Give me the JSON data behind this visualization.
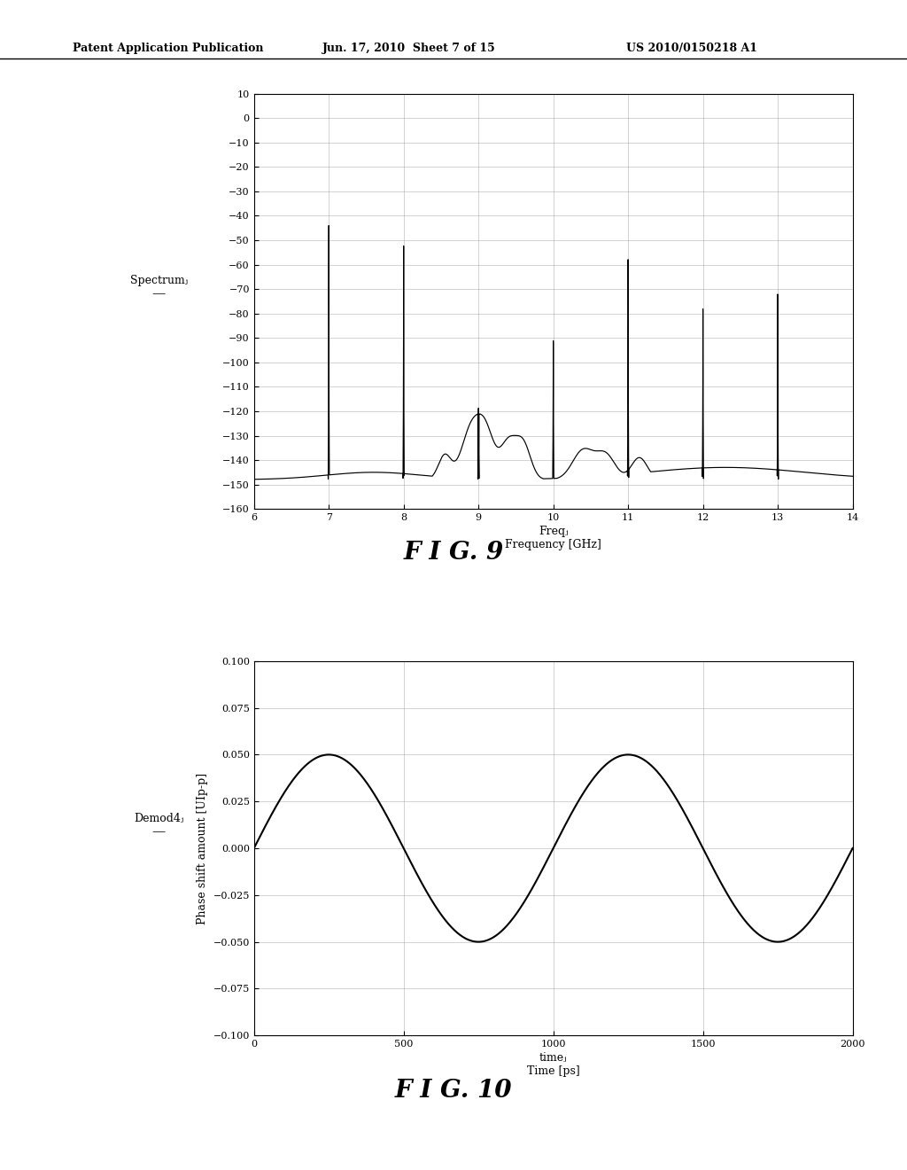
{
  "header_left": "Patent Application Publication",
  "header_mid": "Jun. 17, 2010  Sheet 7 of 15",
  "header_right": "US 2010/0150218 A1",
  "fig9": {
    "title": "F I G. 9",
    "ylabel_label": "Spectrumⱼ",
    "xlabel_label": "Freqⱼ",
    "xlabel2": "Frequency [GHz]",
    "xlim": [
      6,
      14
    ],
    "ylim": [
      -160,
      10
    ],
    "yticks": [
      10,
      0,
      -10,
      -20,
      -30,
      -40,
      -50,
      -60,
      -70,
      -80,
      -90,
      -100,
      -110,
      -120,
      -130,
      -140,
      -150,
      -160
    ],
    "xticks": [
      6,
      7,
      8,
      9,
      10,
      11,
      12,
      13,
      14
    ],
    "noise_floor": -148,
    "spike_freqs": [
      7.0,
      8.0,
      9.0,
      10.0,
      11.0,
      12.0,
      13.0
    ],
    "spike_tops": [
      0,
      0,
      -100,
      -50,
      0,
      -40,
      -40
    ],
    "background_color": "#ffffff",
    "line_color": "#000000"
  },
  "fig10": {
    "title": "F I G. 10",
    "ylabel": "Phase shift amount [UIp-p]",
    "xlabel_label": "timeⱼ",
    "xlabel2": "Time [ps]",
    "legend_label": "Demod4ⱼ",
    "xlim": [
      0,
      2000
    ],
    "ylim": [
      -0.1,
      0.1
    ],
    "yticks": [
      0.1,
      0.075,
      0.05,
      0.025,
      0,
      -0.025,
      -0.05,
      -0.075,
      -0.1
    ],
    "xticks": [
      0,
      500,
      1000,
      1500,
      2000
    ],
    "amplitude": 0.05,
    "period": 1000.0,
    "background_color": "#ffffff",
    "line_color": "#000000"
  }
}
